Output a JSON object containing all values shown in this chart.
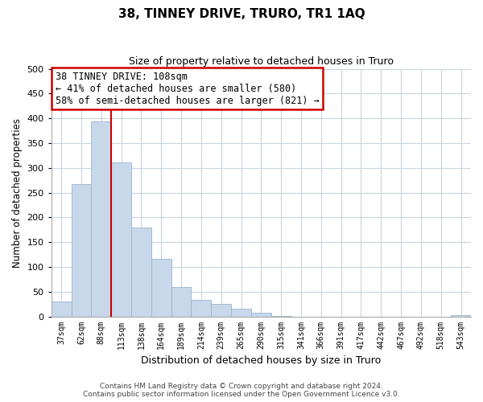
{
  "title": "38, TINNEY DRIVE, TRURO, TR1 1AQ",
  "subtitle": "Size of property relative to detached houses in Truro",
  "xlabel": "Distribution of detached houses by size in Truro",
  "ylabel": "Number of detached properties",
  "bar_labels": [
    "37sqm",
    "62sqm",
    "88sqm",
    "113sqm",
    "138sqm",
    "164sqm",
    "189sqm",
    "214sqm",
    "239sqm",
    "265sqm",
    "290sqm",
    "315sqm",
    "341sqm",
    "366sqm",
    "391sqm",
    "417sqm",
    "442sqm",
    "467sqm",
    "492sqm",
    "518sqm",
    "543sqm"
  ],
  "bar_values": [
    30,
    267,
    393,
    311,
    179,
    116,
    59,
    33,
    26,
    15,
    7,
    1,
    0,
    0,
    0,
    0,
    0,
    0,
    0,
    0,
    2
  ],
  "bar_color": "#c8d8eb",
  "bar_edge_color": "#9ab4cc",
  "ylim": [
    0,
    500
  ],
  "yticks": [
    0,
    50,
    100,
    150,
    200,
    250,
    300,
    350,
    400,
    450,
    500
  ],
  "vline_x": 3.0,
  "vline_color": "#cc0000",
  "annotation_title": "38 TINNEY DRIVE: 108sqm",
  "annotation_line1": "← 41% of detached houses are smaller (580)",
  "annotation_line2": "58% of semi-detached houses are larger (821) →",
  "annotation_box_color": "#ffffff",
  "annotation_box_edge": "#cc0000",
  "footer_line1": "Contains HM Land Registry data © Crown copyright and database right 2024.",
  "footer_line2": "Contains public sector information licensed under the Open Government Licence v3.0.",
  "background_color": "#ffffff",
  "grid_color": "#c8d4e0"
}
